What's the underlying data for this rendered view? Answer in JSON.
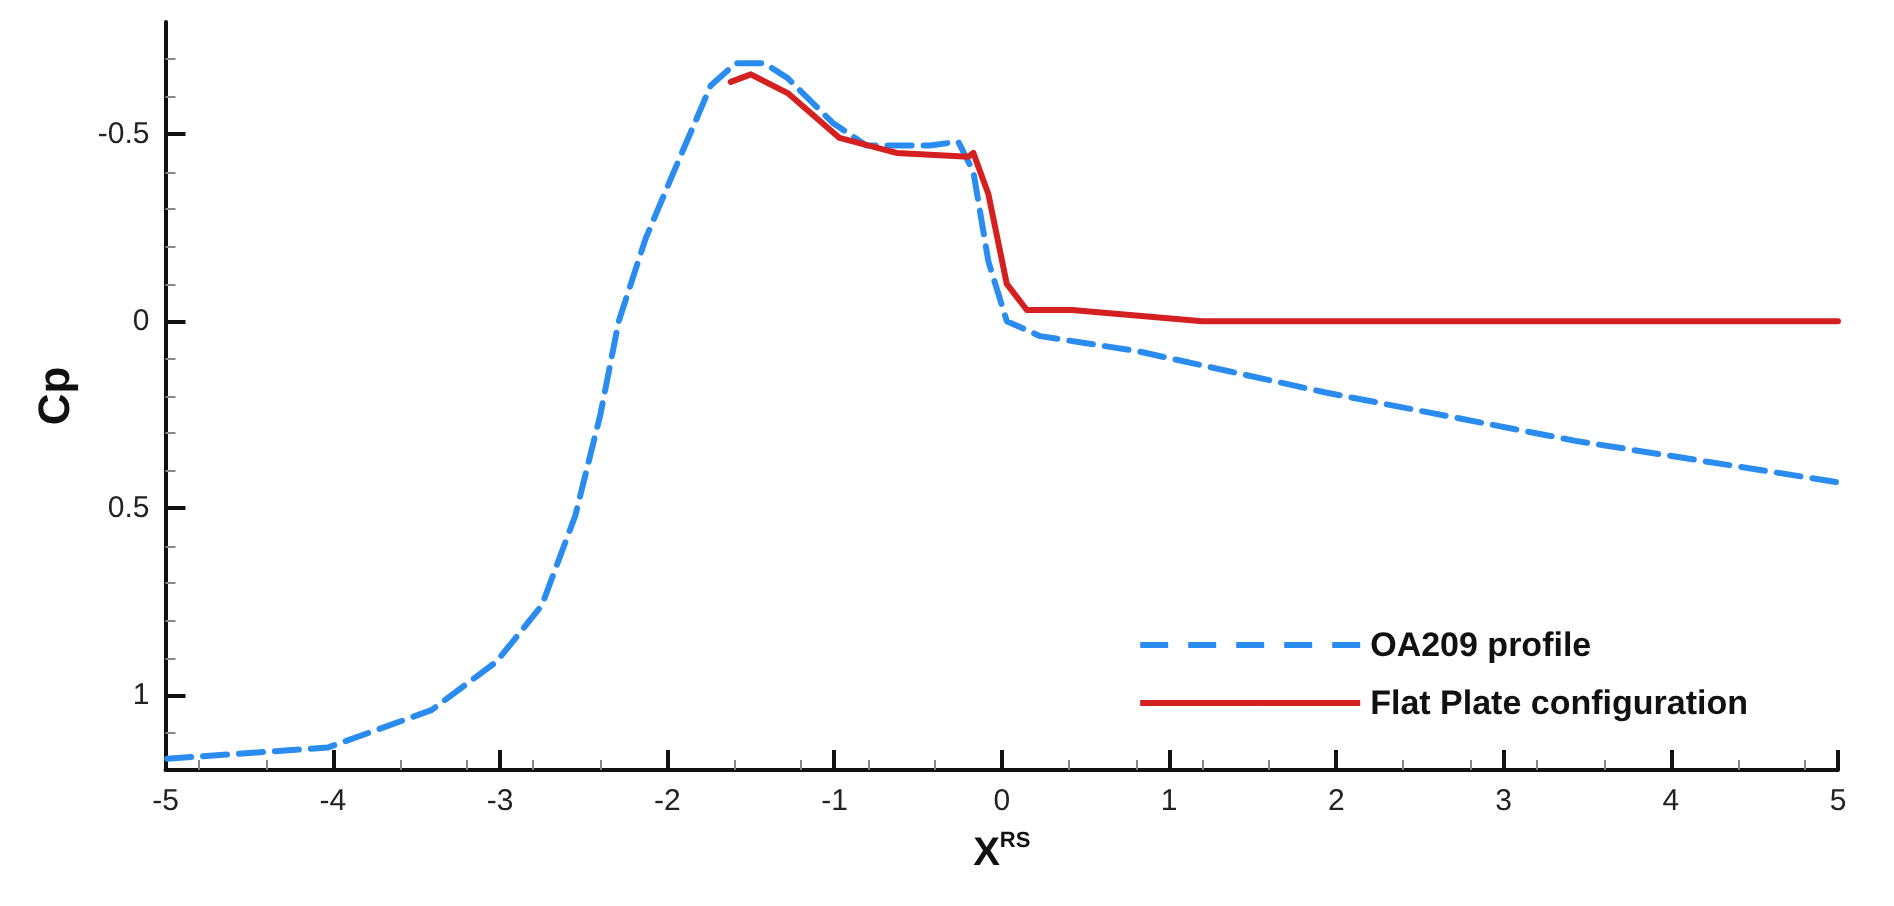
{
  "chart_data": {
    "type": "line",
    "xlabel": "X$^{RS}$",
    "ylabel": "Cp",
    "xlim": [
      -5,
      5
    ],
    "xticks": [
      -5,
      -4,
      -3,
      -2,
      -1,
      0,
      1,
      2,
      3,
      4,
      5
    ],
    "ylim": [
      1.2,
      -0.8
    ],
    "yticks": [
      -0.5,
      0,
      0.5,
      1
    ],
    "grid": false,
    "legend": "bottom right",
    "marker": "none",
    "series": [
      {
        "name": "OA209 profile",
        "color": "#2b8cf0",
        "line_style": "dashed",
        "x": [
          -4.99,
          -4.03,
          -3.41,
          -3.02,
          -2.75,
          -2.55,
          -2.4,
          -2.29,
          -2.13,
          -1.97,
          -1.74,
          -1.59,
          -1.42,
          -1.28,
          -1.01,
          -0.81,
          -0.43,
          -0.26,
          -0.17,
          -0.08,
          0.03,
          0.23,
          0.81,
          1.93,
          3.43,
          4.99
        ],
        "values": [
          1.17,
          1.14,
          1.04,
          0.91,
          0.76,
          0.52,
          0.25,
          0.0,
          -0.22,
          -0.39,
          -0.63,
          -0.69,
          -0.69,
          -0.65,
          -0.53,
          -0.47,
          -0.47,
          -0.48,
          -0.4,
          -0.16,
          0.0,
          0.04,
          0.08,
          0.19,
          0.32,
          0.43
        ]
      },
      {
        "name": "Flat Plate configuration",
        "color": "#d42020",
        "line_style": "solid",
        "x": [
          -1.62,
          -1.5,
          -1.28,
          -0.97,
          -0.63,
          -0.2,
          -0.17,
          -0.08,
          0.03,
          0.15,
          0.42,
          1.2,
          5.0
        ],
        "values": [
          -0.64,
          -0.66,
          -0.61,
          -0.49,
          -0.45,
          -0.44,
          -0.45,
          -0.34,
          -0.1,
          -0.03,
          -0.03,
          0.0,
          0.0
        ]
      }
    ]
  }
}
